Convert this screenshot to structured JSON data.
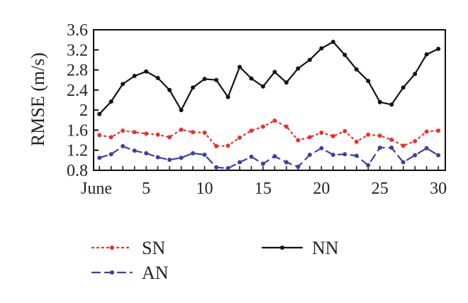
{
  "chart_data": {
    "type": "line",
    "title": "",
    "xlabel": "",
    "ylabel": "RMSE (m/s)",
    "x": [
      1,
      2,
      3,
      4,
      5,
      6,
      7,
      8,
      9,
      10,
      11,
      12,
      13,
      14,
      15,
      16,
      17,
      18,
      19,
      20,
      21,
      22,
      23,
      24,
      25,
      26,
      27,
      28,
      29,
      30
    ],
    "xlim": [
      0.5,
      30.6
    ],
    "ylim": [
      0.8,
      3.6
    ],
    "xticks": [
      {
        "value": 1,
        "label": "June"
      },
      {
        "value": 5,
        "label": "5"
      },
      {
        "value": 10,
        "label": "10"
      },
      {
        "value": 15,
        "label": "15"
      },
      {
        "value": 20,
        "label": "20"
      },
      {
        "value": 25,
        "label": "25"
      },
      {
        "value": 30,
        "label": "30"
      }
    ],
    "yticks": [
      {
        "value": 0.8,
        "label": "0.8"
      },
      {
        "value": 1.2,
        "label": "1.2"
      },
      {
        "value": 1.6,
        "label": "1.6"
      },
      {
        "value": 2.0,
        "label": "2"
      },
      {
        "value": 2.4,
        "label": "2.4"
      },
      {
        "value": 2.8,
        "label": "2.8"
      },
      {
        "value": 3.2,
        "label": "3.2"
      },
      {
        "value": 3.6,
        "label": "3.6"
      }
    ],
    "grid": false,
    "legend_position": "bottom",
    "series": [
      {
        "name": "SN",
        "color": "#e8322a",
        "style": "dotted",
        "values": [
          1.5,
          1.46,
          1.59,
          1.56,
          1.53,
          1.51,
          1.46,
          1.61,
          1.56,
          1.55,
          1.28,
          1.29,
          1.45,
          1.59,
          1.67,
          1.79,
          1.67,
          1.4,
          1.46,
          1.55,
          1.48,
          1.58,
          1.37,
          1.51,
          1.49,
          1.41,
          1.29,
          1.38,
          1.57,
          1.59
        ]
      },
      {
        "name": "AN",
        "color": "#3b3fa8",
        "style": "dashed",
        "values": [
          1.05,
          1.12,
          1.28,
          1.19,
          1.14,
          1.06,
          1.01,
          1.05,
          1.14,
          1.11,
          0.86,
          0.84,
          0.96,
          1.07,
          0.93,
          1.08,
          0.96,
          0.87,
          1.11,
          1.24,
          1.11,
          1.12,
          1.09,
          0.9,
          1.25,
          1.25,
          0.96,
          1.1,
          1.24,
          1.1
        ]
      },
      {
        "name": "NN",
        "color": "#111111",
        "style": "solid",
        "values": [
          1.92,
          2.17,
          2.52,
          2.68,
          2.77,
          2.64,
          2.4,
          2.0,
          2.45,
          2.62,
          2.6,
          2.26,
          2.86,
          2.63,
          2.47,
          2.76,
          2.55,
          2.83,
          3.0,
          3.23,
          3.36,
          3.1,
          2.81,
          2.58,
          2.16,
          2.11,
          2.45,
          2.72,
          3.11,
          3.22
        ]
      }
    ]
  }
}
